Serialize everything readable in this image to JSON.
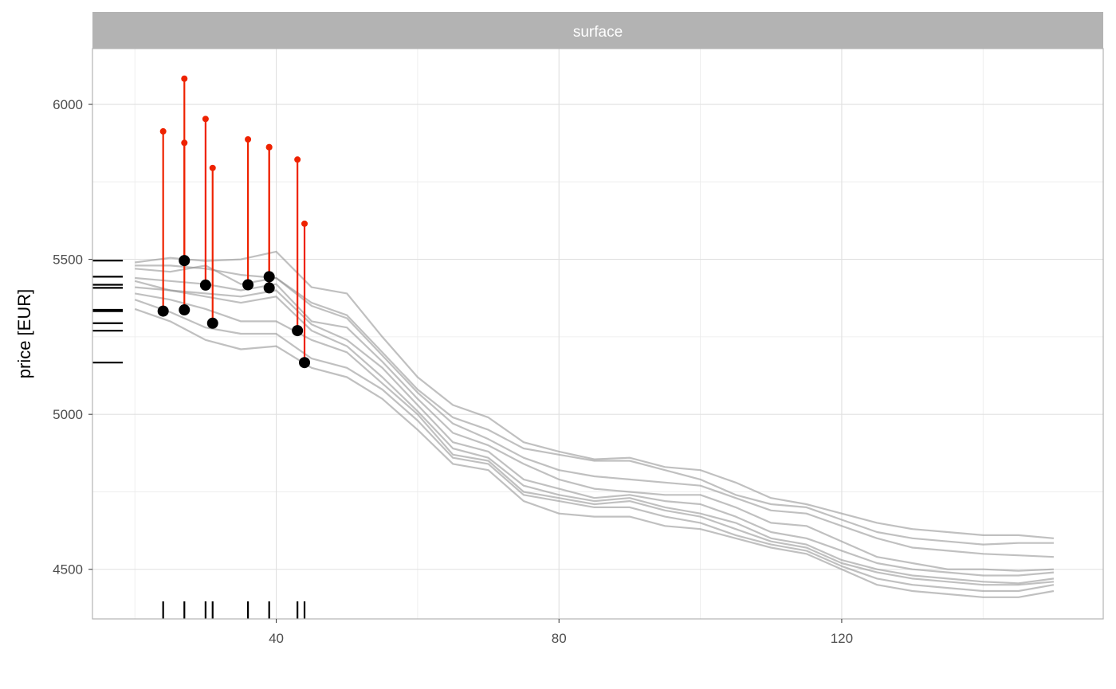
{
  "chart_data": {
    "type": "line",
    "subtype": "ceteris-paribus profiles with residuals",
    "facet_label": "surface",
    "xlabel": "",
    "ylabel": "price [EUR]",
    "xlim": [
      14,
      157
    ],
    "ylim": [
      4340,
      6180
    ],
    "x_ticks": [
      40,
      80,
      120
    ],
    "x_minor_ticks": [
      20,
      60,
      100,
      140
    ],
    "y_ticks": [
      4500,
      5000,
      5500,
      6000
    ],
    "y_minor_ticks": [
      4750,
      5250,
      5750
    ],
    "grid": true,
    "colors": {
      "profile": "#8c8c8c",
      "point": "#000000",
      "residual": "#ee2200",
      "strip": "#b3b3b3",
      "grid": "#e0e0e0",
      "panel_border": "#b3b3b3",
      "rug": "#000000"
    },
    "profile_x": [
      20,
      25,
      30,
      35,
      40,
      45,
      50,
      55,
      60,
      65,
      70,
      75,
      80,
      85,
      90,
      95,
      100,
      105,
      110,
      115,
      120,
      125,
      130,
      135,
      140,
      145,
      150
    ],
    "profiles": [
      {
        "y": [
          5490,
          5505,
          5495,
          5500,
          5525,
          5410,
          5390,
          5250,
          5120,
          5030,
          4990,
          4910,
          4880,
          4855,
          4860,
          4830,
          4820,
          4780,
          4730,
          4710,
          4680,
          4650,
          4630,
          4620,
          4610,
          4610,
          4600
        ]
      },
      {
        "y": [
          5480,
          5480,
          5470,
          5450,
          5440,
          5360,
          5320,
          5200,
          5080,
          4990,
          4950,
          4890,
          4870,
          4850,
          4850,
          4820,
          4790,
          4740,
          4710,
          4700,
          4660,
          4620,
          4600,
          4590,
          4580,
          4585,
          4585
        ]
      },
      {
        "y": [
          5470,
          5460,
          5480,
          5420,
          5440,
          5350,
          5310,
          5190,
          5070,
          4970,
          4920,
          4860,
          4820,
          4800,
          4790,
          4780,
          4770,
          4730,
          4690,
          4680,
          4640,
          4600,
          4570,
          4560,
          4550,
          4545,
          4540
        ]
      },
      {
        "y": [
          5440,
          5430,
          5420,
          5400,
          5420,
          5300,
          5280,
          5170,
          5050,
          4940,
          4900,
          4840,
          4790,
          4760,
          4750,
          4740,
          4740,
          4700,
          4650,
          4640,
          4590,
          4540,
          4520,
          4500,
          4500,
          4495,
          4500
        ]
      },
      {
        "y": [
          5430,
          5400,
          5390,
          5380,
          5400,
          5290,
          5240,
          5150,
          5030,
          4910,
          4880,
          4790,
          4760,
          4730,
          4740,
          4720,
          4710,
          4670,
          4620,
          4600,
          4560,
          4520,
          4500,
          4490,
          4480,
          4480,
          4490
        ]
      },
      {
        "y": [
          5410,
          5400,
          5380,
          5360,
          5380,
          5270,
          5220,
          5120,
          5010,
          4890,
          4860,
          4770,
          4740,
          4720,
          4730,
          4700,
          4680,
          4650,
          4600,
          4580,
          4530,
          4500,
          4480,
          4470,
          4460,
          4455,
          4470
        ]
      },
      {
        "y": [
          5390,
          5370,
          5340,
          5300,
          5300,
          5240,
          5200,
          5100,
          5000,
          4870,
          4850,
          4750,
          4730,
          4710,
          4720,
          4690,
          4670,
          4630,
          4590,
          4570,
          4520,
          4490,
          4470,
          4460,
          4450,
          4450,
          4460
        ]
      },
      {
        "y": [
          5370,
          5330,
          5280,
          5260,
          5260,
          5180,
          5150,
          5080,
          4980,
          4860,
          4840,
          4740,
          4720,
          4700,
          4700,
          4670,
          4650,
          4610,
          4580,
          4560,
          4510,
          4470,
          4450,
          4440,
          4430,
          4430,
          4450
        ]
      },
      {
        "y": [
          5340,
          5300,
          5240,
          5210,
          5220,
          5150,
          5120,
          5050,
          4950,
          4840,
          4820,
          4720,
          4680,
          4670,
          4670,
          4640,
          4630,
          4600,
          4570,
          4550,
          4500,
          4450,
          4430,
          4420,
          4410,
          4410,
          4430
        ]
      }
    ],
    "observations": {
      "x": [
        24,
        27,
        30,
        31,
        36,
        39,
        39,
        43,
        44
      ],
      "y": [
        5333,
        5337,
        5417,
        5294,
        5418,
        5408,
        5444,
        5270,
        5167
      ],
      "actual": [
        5913,
        5876,
        5953,
        5795,
        5887,
        5862,
        5862,
        5822,
        5615
      ],
      "extra_actual_at_x27": 6083,
      "extra_y_at_x27": 5496
    },
    "rug_x": [
      24,
      27,
      30,
      31,
      36,
      39,
      43,
      44
    ],
    "rug_y": [
      5496,
      5444,
      5418,
      5408,
      5337,
      5333,
      5294,
      5270,
      5167
    ]
  }
}
